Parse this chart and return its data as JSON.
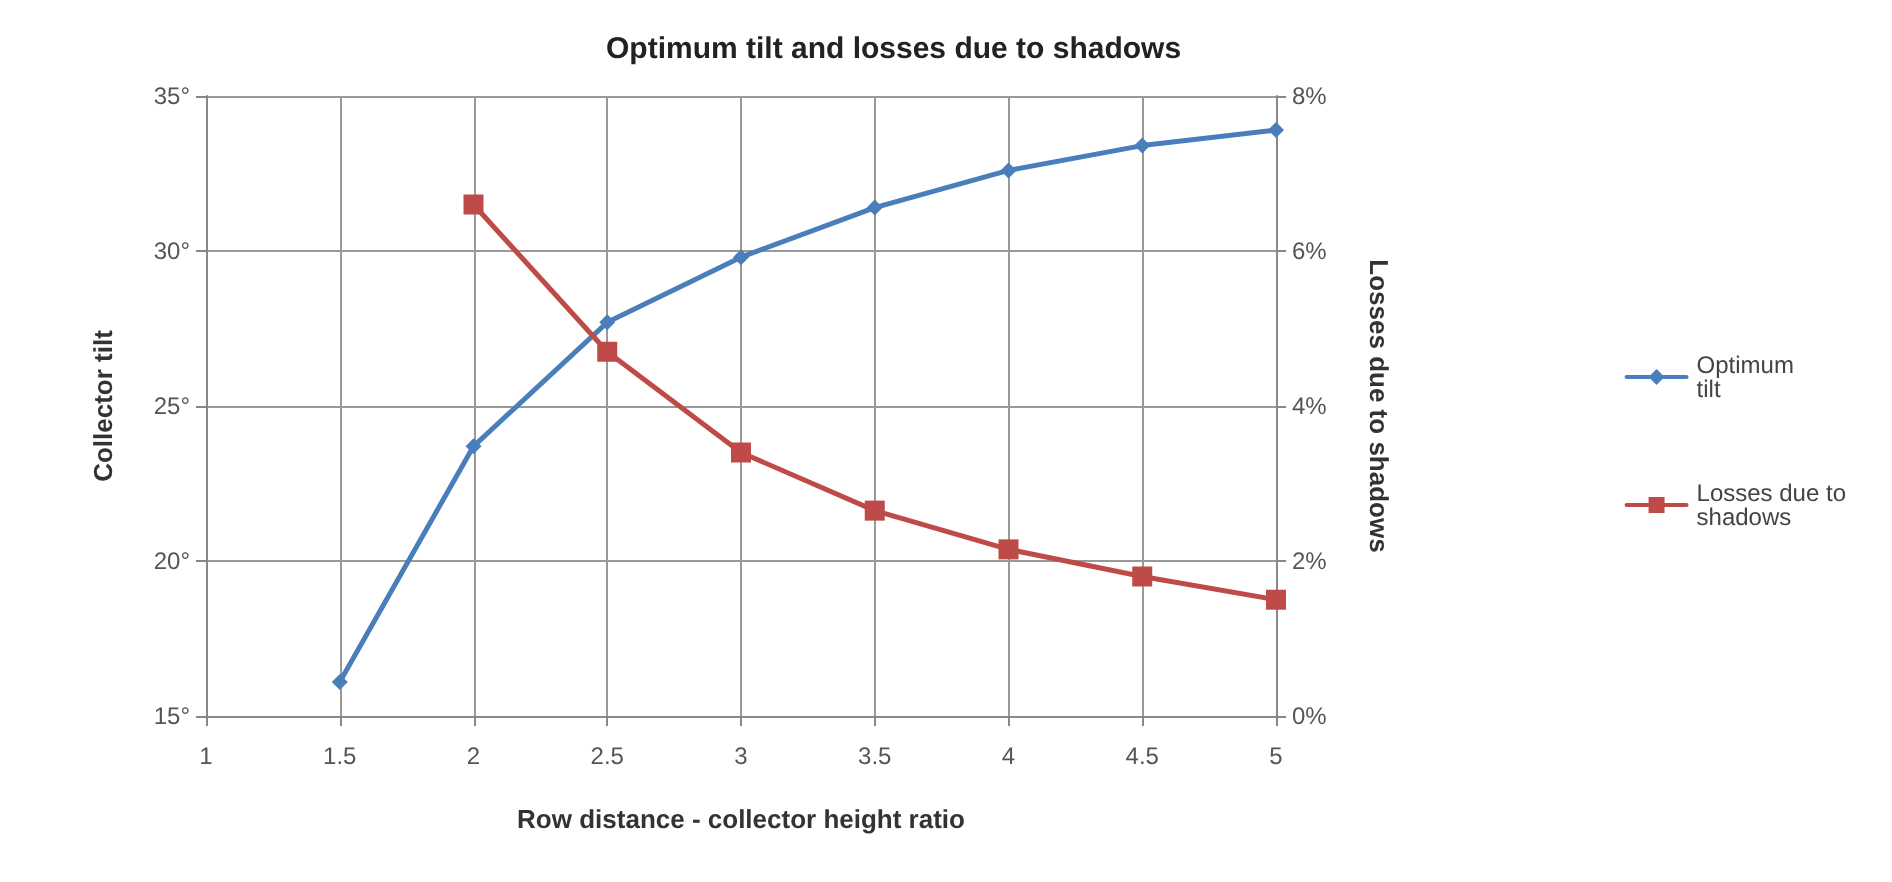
{
  "chart_data": {
    "type": "line",
    "title": "Optimum tilt and losses due to shadows",
    "xlabel": "Row distance - collector height ratio",
    "ylabel": "Collector tilt",
    "y2label": "Losses due to shadows",
    "x": [
      1.5,
      2,
      2.5,
      3,
      3.5,
      4,
      4.5,
      5
    ],
    "series": [
      {
        "name": "Optimum tilt",
        "color": "#4a7ebb",
        "marker": "diamond",
        "values": [
          16.1,
          23.7,
          27.7,
          29.8,
          31.4,
          32.6,
          33.4,
          33.9
        ]
      },
      {
        "name": "Losses due to shadows",
        "color": "#be4b48",
        "marker": "square",
        "axis": "y2",
        "values": [
          null,
          6.6,
          4.7,
          3.4,
          2.65,
          2.15,
          1.8,
          1.5
        ]
      }
    ],
    "xlim": [
      1,
      5
    ],
    "xticks": [
      1,
      1.5,
      2,
      2.5,
      3,
      3.5,
      4,
      4.5,
      5
    ],
    "ylim": [
      15,
      35
    ],
    "yticks": [
      {
        "value": 15,
        "label": "15°"
      },
      {
        "value": 20,
        "label": "20°"
      },
      {
        "value": 25,
        "label": "25°"
      },
      {
        "value": 30,
        "label": "30°"
      },
      {
        "value": 35,
        "label": "35°"
      }
    ],
    "y2lim": [
      0,
      8
    ],
    "y2ticks": [
      {
        "value": 0,
        "label": "0%"
      },
      {
        "value": 2,
        "label": "2%"
      },
      {
        "value": 4,
        "label": "4%"
      },
      {
        "value": 6,
        "label": "6%"
      },
      {
        "value": 8,
        "label": "8%"
      }
    ],
    "grid": true,
    "legend": "right",
    "line_style": "solid"
  }
}
